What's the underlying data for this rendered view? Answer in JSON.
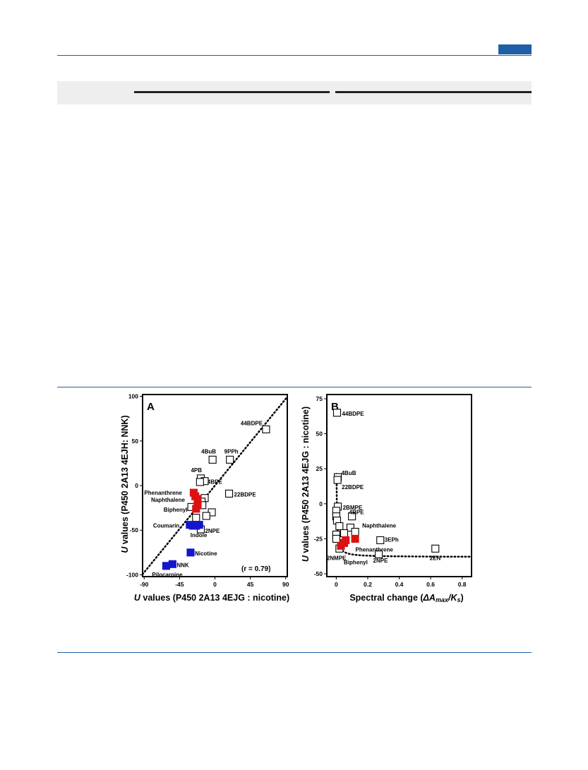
{
  "figure": {
    "panels": [
      {
        "id": "A",
        "panel_label": "A",
        "xlabel_italic": "U",
        "xlabel_rest": " values (P450 2A13 4EJG : nicotine)",
        "ylabel_italic": "U",
        "ylabel_rest": " values (P450 2A13 4EJH: NNK)",
        "annotation": "(r = 0.79)",
        "xticks": [
          "-90",
          "-45",
          "0",
          "45",
          "90"
        ],
        "yticks": [
          "100",
          "50",
          "0",
          "-50",
          "-100"
        ]
      },
      {
        "id": "B",
        "panel_label": "B",
        "xlabel": "Spectral change (ΔAmax/Ks)",
        "ylabel_italic": "U",
        "ylabel_rest": " values (P450 2A13 4EJG : nicotine)",
        "xticks": [
          "0",
          "0.2",
          "0.4",
          "0.6",
          "0.8"
        ],
        "yticks": [
          "75",
          "50",
          "25",
          "0",
          "-25",
          "-50"
        ]
      }
    ]
  },
  "chart_data": [
    {
      "type": "scatter",
      "title": "A",
      "xlabel": "U values (P450 2A13 4EJG : nicotine)",
      "ylabel": "U values (P450 2A13 4EJH: NNK)",
      "xlim": [
        -92,
        92
      ],
      "ylim": [
        -102,
        102
      ],
      "xticks": [
        -90,
        -45,
        0,
        45,
        90
      ],
      "yticks": [
        -100,
        -50,
        0,
        50,
        100
      ],
      "reference_line": "dotted y = x",
      "annotation": "(r = 0.79)",
      "colors": {
        "white": "#ffffff",
        "red": "#dd1111",
        "blue": "#1515cc"
      },
      "points": [
        {
          "x": 65,
          "y": 63,
          "label": "44BDPE",
          "color": "white"
        },
        {
          "x": -3,
          "y": 29,
          "label": "4BuB",
          "color": "white"
        },
        {
          "x": 19,
          "y": 29,
          "label": "9PPh",
          "color": "white"
        },
        {
          "x": -18,
          "y": 8,
          "label": "4PB",
          "color": "white"
        },
        {
          "x": -13,
          "y": 5,
          "label": "4BPE",
          "color": "white"
        },
        {
          "x": -19,
          "y": 4,
          "label": "",
          "color": "white"
        },
        {
          "x": 18,
          "y": -9,
          "label": "22BDPE",
          "color": "white"
        },
        {
          "x": -13,
          "y": -14,
          "label": "",
          "color": "white"
        },
        {
          "x": -17,
          "y": -18,
          "label": "",
          "color": "white"
        },
        {
          "x": -30,
          "y": -24,
          "label": "",
          "color": "white"
        },
        {
          "x": -16,
          "y": -22,
          "label": "",
          "color": "white"
        },
        {
          "x": -4,
          "y": -30,
          "label": "",
          "color": "white"
        },
        {
          "x": -11,
          "y": -34,
          "label": "",
          "color": "white"
        },
        {
          "x": -24,
          "y": -36,
          "label": "",
          "color": "white"
        },
        {
          "x": -18,
          "y": -49,
          "label": "2NPE",
          "color": "white"
        },
        {
          "x": -27,
          "y": -8,
          "label": "Phenanthrene",
          "color": "red"
        },
        {
          "x": -25,
          "y": -12,
          "label": "",
          "color": "red"
        },
        {
          "x": -22,
          "y": -15,
          "label": "Naphthalene",
          "color": "red"
        },
        {
          "x": -22,
          "y": -22,
          "label": "",
          "color": "red"
        },
        {
          "x": -24,
          "y": -26,
          "label": "Biphenyl",
          "color": "red"
        },
        {
          "x": -32,
          "y": -44,
          "label": "Coumarin",
          "color": "blue"
        },
        {
          "x": -28,
          "y": -45,
          "label": "",
          "color": "blue"
        },
        {
          "x": -24,
          "y": -45,
          "label": "Indole",
          "color": "blue"
        },
        {
          "x": -20,
          "y": -44,
          "label": "",
          "color": "blue"
        },
        {
          "x": -31,
          "y": -75,
          "label": "Nicotine",
          "color": "blue"
        },
        {
          "x": -54,
          "y": -88,
          "label": "NNK",
          "color": "blue"
        },
        {
          "x": -62,
          "y": -90,
          "label": "Pilocarpine",
          "color": "blue"
        }
      ]
    },
    {
      "type": "scatter",
      "title": "B",
      "xlabel": "Spectral change (ΔAmax/Ks)",
      "ylabel": "U values (P450 2A13 4EJG : nicotine)",
      "xlim": [
        -0.06,
        0.86
      ],
      "ylim": [
        -52,
        78
      ],
      "xticks": [
        0,
        0.2,
        0.4,
        0.6,
        0.8
      ],
      "yticks": [
        -50,
        -25,
        0,
        25,
        50,
        75
      ],
      "reference_curve": "dotted hyperbolic fit",
      "colors": {
        "white": "#ffffff",
        "red": "#dd1111"
      },
      "points": [
        {
          "x": 0.005,
          "y": 65,
          "label": "44BDPE",
          "color": "white"
        },
        {
          "x": 0.01,
          "y": 19,
          "label": "4BuB",
          "color": "white"
        },
        {
          "x": 0.008,
          "y": 17,
          "label": "22BDPE",
          "color": "white"
        },
        {
          "x": 0.01,
          "y": -2,
          "label": "2BMPE",
          "color": "white"
        },
        {
          "x": 0.0,
          "y": -5,
          "label": "",
          "color": "white"
        },
        {
          "x": 0.0,
          "y": -9,
          "label": "",
          "color": "white"
        },
        {
          "x": 0.005,
          "y": -12,
          "label": "",
          "color": "white"
        },
        {
          "x": 0.1,
          "y": -9,
          "label": "4BPE",
          "color": "white"
        },
        {
          "x": 0.02,
          "y": -16,
          "label": "",
          "color": "white"
        },
        {
          "x": 0.09,
          "y": -17,
          "label": "",
          "color": "white"
        },
        {
          "x": 0.12,
          "y": -20,
          "label": "Naphthalene",
          "color": "white"
        },
        {
          "x": 0.0,
          "y": -22,
          "label": "",
          "color": "white"
        },
        {
          "x": 0.05,
          "y": -21,
          "label": "",
          "color": "white"
        },
        {
          "x": 0.0,
          "y": -25,
          "label": "",
          "color": "white"
        },
        {
          "x": 0.28,
          "y": -26,
          "label": "3EPh",
          "color": "white"
        },
        {
          "x": 0.02,
          "y": -32,
          "label": "2NMPE",
          "color": "white"
        },
        {
          "x": 0.27,
          "y": -36,
          "label": "2NPE",
          "color": "white"
        },
        {
          "x": 0.63,
          "y": -32,
          "label": "2EN",
          "color": "white"
        },
        {
          "x": 0.12,
          "y": -25,
          "label": "",
          "color": "red"
        },
        {
          "x": 0.06,
          "y": -26,
          "label": "",
          "color": "red"
        },
        {
          "x": 0.05,
          "y": -28,
          "label": "Phenanthrene",
          "color": "red"
        },
        {
          "x": 0.03,
          "y": -30,
          "label": "Biphenyl",
          "color": "red"
        }
      ]
    }
  ]
}
